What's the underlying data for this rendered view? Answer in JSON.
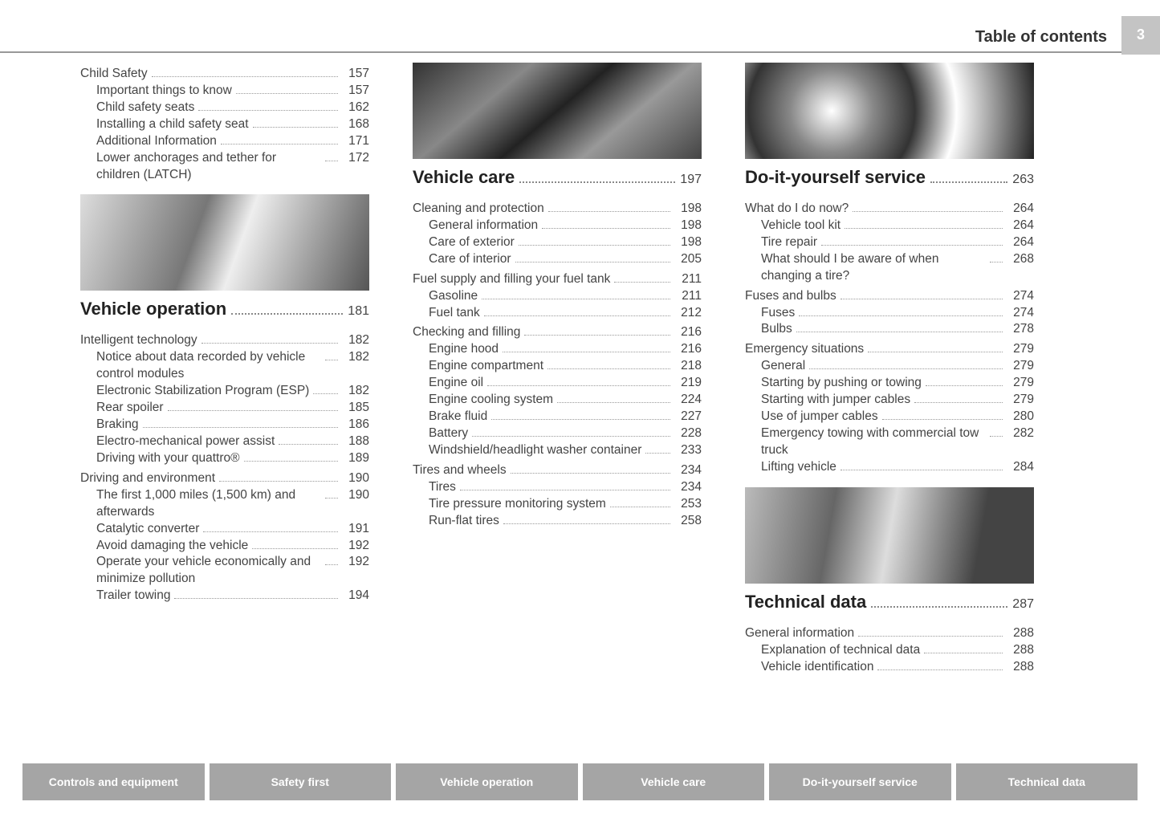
{
  "header": {
    "title": "Table of contents",
    "page": "3"
  },
  "columns": [
    {
      "blocks": [
        {
          "type": "group",
          "level": 0,
          "label": "Child Safety",
          "page": "157",
          "items": [
            {
              "label": "Important things to know",
              "page": "157"
            },
            {
              "label": "Child safety seats",
              "page": "162"
            },
            {
              "label": "Installing a child safety seat",
              "page": "168"
            },
            {
              "label": "Additional Information",
              "page": "171"
            },
            {
              "label": "Lower anchorages and tether for children (LATCH)",
              "page": "172",
              "wrap": true
            }
          ]
        },
        {
          "type": "spacer"
        },
        {
          "type": "image",
          "gradient": "linear-gradient(110deg,#ddd,#777 40%,#eee 55%,#555)"
        },
        {
          "type": "heading",
          "label": "Vehicle operation",
          "page": "181"
        },
        {
          "type": "group",
          "level": 0,
          "label": "Intelligent technology",
          "page": "182",
          "items": [
            {
              "label": "Notice about data recorded by vehicle control modules",
              "page": "182",
              "wrap": true
            },
            {
              "label": "Electronic Stabilization Program (ESP)",
              "page": "182",
              "wrap": true
            },
            {
              "label": "Rear spoiler",
              "page": "185"
            },
            {
              "label": "Braking",
              "page": "186"
            },
            {
              "label": "Electro-mechanical power assist",
              "page": "188"
            },
            {
              "label": "Driving with your quattro®",
              "page": "189"
            }
          ]
        },
        {
          "type": "group",
          "level": 0,
          "label": "Driving and environment",
          "page": "190",
          "items": [
            {
              "label": "The first 1,000 miles (1,500 km) and afterwards",
              "page": "190",
              "wrap": true
            },
            {
              "label": "Catalytic converter",
              "page": "191"
            },
            {
              "label": "Avoid damaging the vehicle",
              "page": "192"
            },
            {
              "label": "Operate your vehicle economically and minimize pollution",
              "page": "192",
              "wrap": true
            },
            {
              "label": "Trailer towing",
              "page": "194"
            }
          ]
        }
      ]
    },
    {
      "blocks": [
        {
          "type": "image",
          "gradient": "linear-gradient(140deg,#333,#888 30%,#222 50%,#999 70%,#444)"
        },
        {
          "type": "heading",
          "label": "Vehicle care",
          "page": "197"
        },
        {
          "type": "group",
          "level": 0,
          "label": "Cleaning and protection",
          "page": "198",
          "items": [
            {
              "label": "General information",
              "page": "198"
            },
            {
              "label": "Care of exterior",
              "page": "198"
            },
            {
              "label": "Care of interior",
              "page": "205"
            }
          ]
        },
        {
          "type": "group",
          "level": 0,
          "label": "Fuel supply and filling your fuel tank",
          "page": "211",
          "wrap": true,
          "items": [
            {
              "label": "Gasoline",
              "page": "211"
            },
            {
              "label": "Fuel tank",
              "page": "212"
            }
          ]
        },
        {
          "type": "group",
          "level": 0,
          "label": "Checking and filling",
          "page": "216",
          "items": [
            {
              "label": "Engine hood",
              "page": "216"
            },
            {
              "label": "Engine compartment",
              "page": "218"
            },
            {
              "label": "Engine oil",
              "page": "219"
            },
            {
              "label": "Engine cooling system",
              "page": "224"
            },
            {
              "label": "Brake fluid",
              "page": "227"
            },
            {
              "label": "Battery",
              "page": "228"
            },
            {
              "label": "Windshield/headlight washer container",
              "page": "233",
              "wrap": true
            }
          ]
        },
        {
          "type": "group",
          "level": 0,
          "label": "Tires and wheels",
          "page": "234",
          "items": [
            {
              "label": "Tires",
              "page": "234"
            },
            {
              "label": "Tire pressure monitoring system",
              "page": "253"
            },
            {
              "label": "Run-flat tires",
              "page": "258"
            }
          ]
        }
      ]
    },
    {
      "blocks": [
        {
          "type": "image",
          "gradient": "radial-gradient(circle at 30% 50%,#fff,#888 20%,#333 40%,#fff 60%,#222)"
        },
        {
          "type": "heading",
          "label": "Do-it-yourself service",
          "page": "263"
        },
        {
          "type": "group",
          "level": 0,
          "label": "What do I do now?",
          "page": "264",
          "items": [
            {
              "label": "Vehicle tool kit",
              "page": "264"
            },
            {
              "label": "Tire repair",
              "page": "264"
            },
            {
              "label": "What should I be aware of when changing a tire?",
              "page": "268",
              "wrap": true
            }
          ]
        },
        {
          "type": "group",
          "level": 0,
          "label": "Fuses and bulbs",
          "page": "274",
          "items": [
            {
              "label": "Fuses",
              "page": "274"
            },
            {
              "label": "Bulbs",
              "page": "278"
            }
          ]
        },
        {
          "type": "group",
          "level": 0,
          "label": "Emergency situations",
          "page": "279",
          "items": [
            {
              "label": "General",
              "page": "279"
            },
            {
              "label": "Starting by pushing or towing",
              "page": "279"
            },
            {
              "label": "Starting with jumper cables",
              "page": "279"
            },
            {
              "label": "Use of jumper cables",
              "page": "280"
            },
            {
              "label": "Emergency towing with commercial tow truck",
              "page": "282",
              "wrap": true
            },
            {
              "label": "Lifting vehicle",
              "page": "284"
            }
          ]
        },
        {
          "type": "spacer"
        },
        {
          "type": "image",
          "gradient": "linear-gradient(100deg,#bbb,#666 30%,#ddd 50%,#444 80%)"
        },
        {
          "type": "heading",
          "label": "Technical data",
          "page": "287"
        },
        {
          "type": "group",
          "level": 0,
          "label": "General information",
          "page": "288",
          "items": [
            {
              "label": "Explanation of technical data",
              "page": "288"
            },
            {
              "label": "Vehicle identification",
              "page": "288"
            }
          ]
        }
      ]
    }
  ],
  "tabs": [
    "Controls and equipment",
    "Safety first",
    "Vehicle operation",
    "Vehicle care",
    "Do-it-yourself service",
    "Technical data"
  ]
}
